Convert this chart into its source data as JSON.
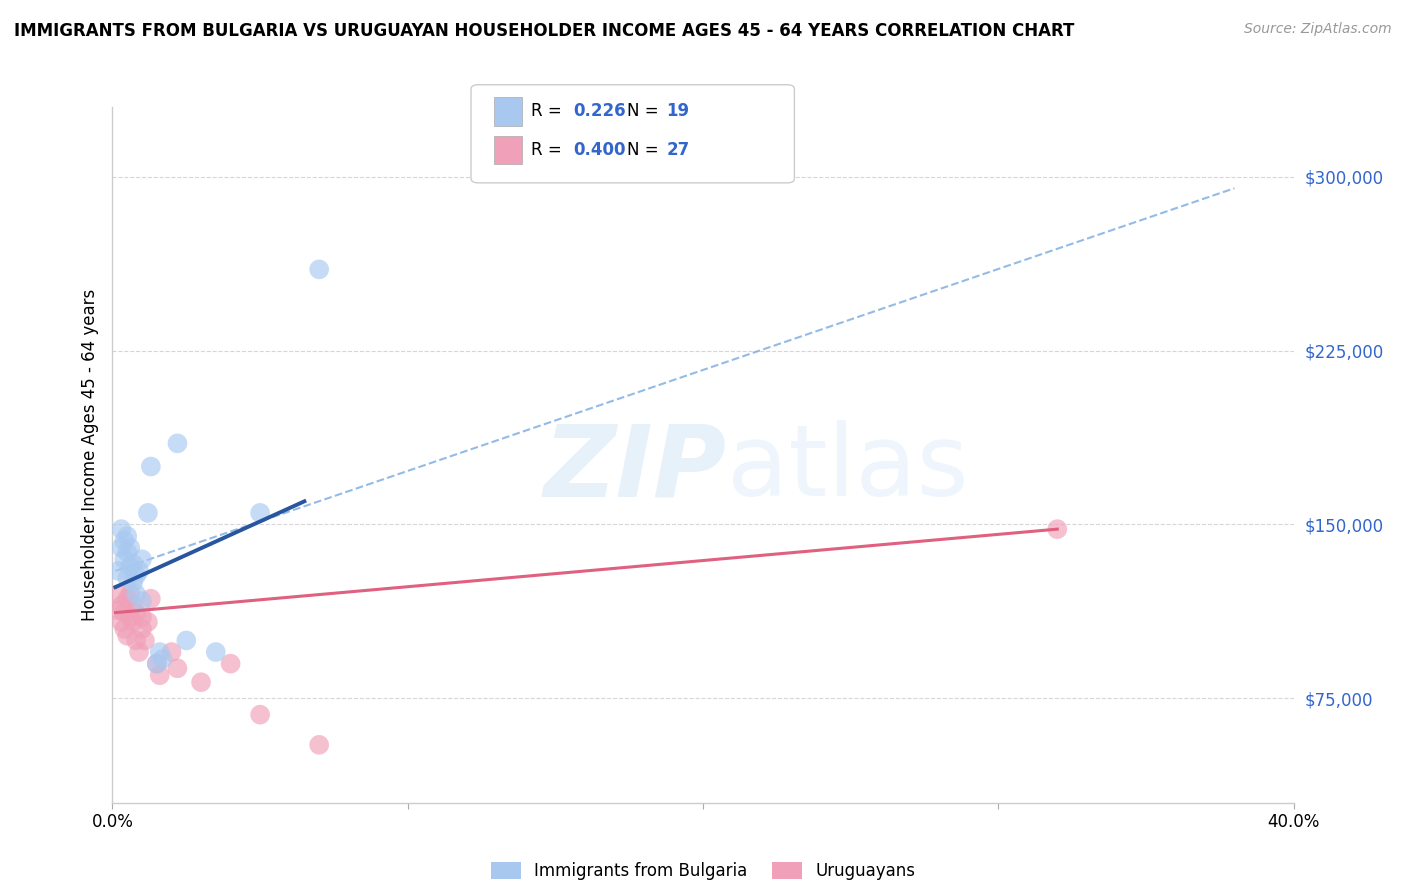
{
  "title": "IMMIGRANTS FROM BULGARIA VS URUGUAYAN HOUSEHOLDER INCOME AGES 45 - 64 YEARS CORRELATION CHART",
  "source": "Source: ZipAtlas.com",
  "ylabel": "Householder Income Ages 45 - 64 years",
  "xlim": [
    0.0,
    0.4
  ],
  "ylim": [
    30000,
    330000
  ],
  "yticks": [
    75000,
    150000,
    225000,
    300000
  ],
  "ytick_labels": [
    "$75,000",
    "$150,000",
    "$225,000",
    "$300,000"
  ],
  "blue_color": "#a8c8f0",
  "pink_color": "#f0a0b8",
  "blue_line_color": "#2855a0",
  "pink_line_color": "#e06080",
  "blue_dash_color": "#7aaae0",
  "watermark_zip": "ZIP",
  "watermark_atlas": "atlas",
  "blue_scatter_x": [
    0.002,
    0.003,
    0.003,
    0.004,
    0.004,
    0.005,
    0.005,
    0.005,
    0.006,
    0.006,
    0.007,
    0.007,
    0.008,
    0.008,
    0.009,
    0.01,
    0.01,
    0.012,
    0.013,
    0.015,
    0.016,
    0.017,
    0.022,
    0.025,
    0.035,
    0.05,
    0.07
  ],
  "blue_scatter_y": [
    130000,
    140000,
    148000,
    135000,
    143000,
    127000,
    138000,
    145000,
    132000,
    140000,
    125000,
    133000,
    128000,
    120000,
    130000,
    117000,
    135000,
    155000,
    175000,
    90000,
    95000,
    92000,
    185000,
    100000,
    95000,
    155000,
    260000
  ],
  "pink_scatter_x": [
    0.002,
    0.002,
    0.003,
    0.003,
    0.004,
    0.004,
    0.005,
    0.005,
    0.006,
    0.006,
    0.007,
    0.007,
    0.008,
    0.008,
    0.009,
    0.01,
    0.01,
    0.011,
    0.012,
    0.013,
    0.015,
    0.016,
    0.02,
    0.022,
    0.03,
    0.04,
    0.05,
    0.07,
    0.32
  ],
  "pink_scatter_y": [
    120000,
    113000,
    108000,
    115000,
    105000,
    112000,
    102000,
    118000,
    110000,
    120000,
    115000,
    108000,
    100000,
    112000,
    95000,
    105000,
    110000,
    100000,
    108000,
    118000,
    90000,
    85000,
    95000,
    88000,
    82000,
    90000,
    68000,
    55000,
    148000
  ],
  "blue_line_x": [
    0.001,
    0.065
  ],
  "blue_line_y": [
    123000,
    160000
  ],
  "pink_line_x": [
    0.001,
    0.32
  ],
  "pink_line_y": [
    112000,
    148000
  ],
  "dashed_line_x": [
    0.001,
    0.38
  ],
  "dashed_line_y": [
    130000,
    295000
  ],
  "background_color": "#ffffff",
  "grid_color": "#cccccc"
}
